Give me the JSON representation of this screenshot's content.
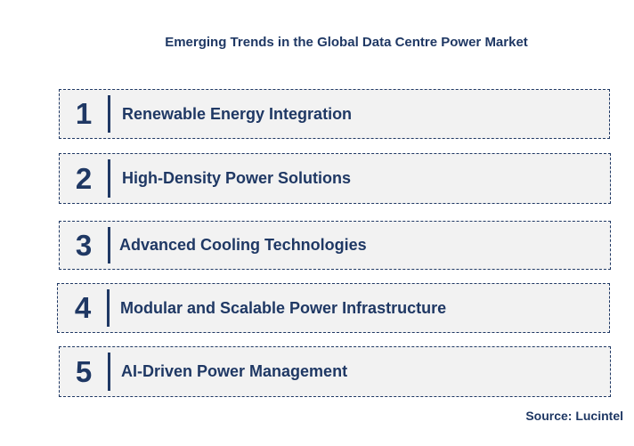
{
  "title": "Emerging Trends in the Global Data Centre Power Market",
  "trends": [
    {
      "number": "1",
      "label": "Renewable Energy Integration"
    },
    {
      "number": "2",
      "label": "High-Density Power Solutions"
    },
    {
      "number": "3",
      "label": "Advanced Cooling Technologies"
    },
    {
      "number": "4",
      "label": "Modular and Scalable Power Infrastructure"
    },
    {
      "number": "5",
      "label": "AI-Driven Power Management"
    }
  ],
  "source": "Source: Lucintel",
  "colors": {
    "accent": "#1f3864",
    "box_fill": "#f2f2f2"
  }
}
